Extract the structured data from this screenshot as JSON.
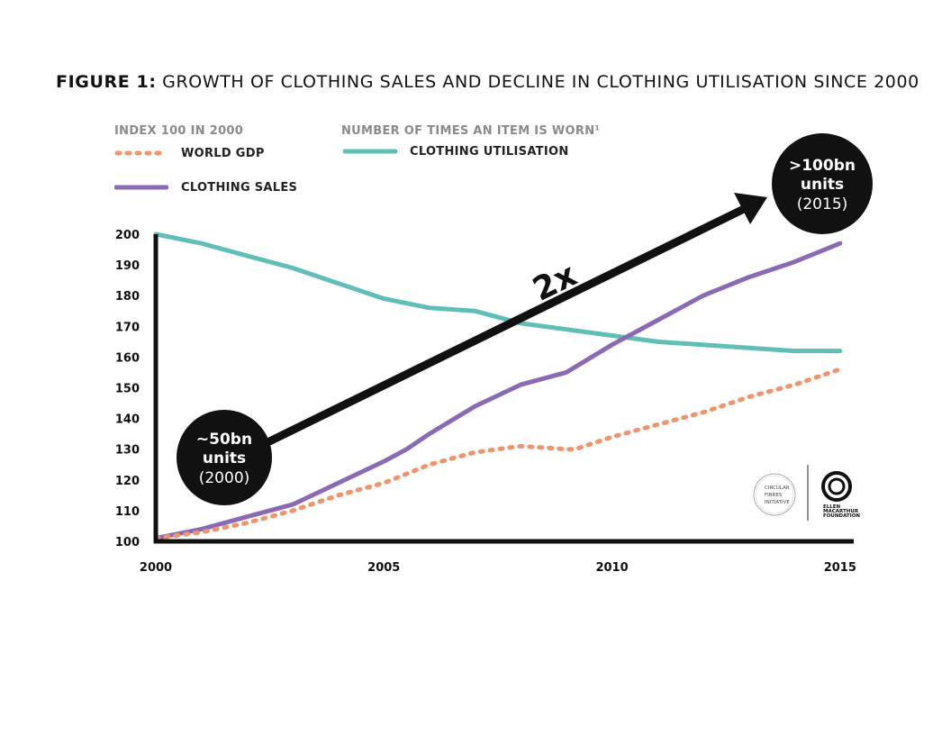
{
  "figure": {
    "label": "FIGURE 1:",
    "title": "GROWTH OF CLOTHING SALES AND DECLINE IN CLOTHING UTILISATION SINCE 2000"
  },
  "legend": {
    "left_heading": "INDEX 100 IN 2000",
    "right_heading": "NUMBER OF TIMES AN ITEM IS WORN¹",
    "items": [
      {
        "label": "WORLD GDP",
        "color": "#f0956b",
        "style": "dotted"
      },
      {
        "label": "CLOTHING SALES",
        "color": "#8a6bb3",
        "style": "solid"
      },
      {
        "label": "CLOTHING UTILISATION",
        "color": "#5fbfb6",
        "style": "solid"
      }
    ]
  },
  "annotations": {
    "start_bubble": {
      "line1": "~50bn",
      "line2": "units",
      "line3": "(2000)"
    },
    "end_bubble": {
      "line1": ">100bn",
      "line2": "units",
      "line3": "(2015)"
    },
    "multiplier": "2x"
  },
  "logos": {
    "left": [
      "CIRCULAR",
      "FIBRES",
      "INITIATIVE"
    ],
    "right": [
      "ELLEN",
      "MACARTHUR",
      "FOUNDATION"
    ]
  },
  "chart_data": {
    "type": "line",
    "xlim": [
      2000,
      2015.3
    ],
    "ylim": [
      100,
      200
    ],
    "x_ticks": [
      2000,
      2005,
      2010,
      2015
    ],
    "y_ticks": [
      100,
      110,
      120,
      130,
      140,
      150,
      160,
      170,
      180,
      190,
      200
    ],
    "grid": false,
    "legend_position": "top-left",
    "series": [
      {
        "name": "CLOTHING UTILISATION",
        "color": "#5fbfb6",
        "style": "solid",
        "x": [
          2000,
          2001,
          2002,
          2003,
          2004,
          2005,
          2006,
          2007,
          2008,
          2009,
          2010,
          2011,
          2012,
          2013,
          2014,
          2015
        ],
        "values": [
          200,
          197,
          193,
          189,
          184,
          179,
          176,
          175,
          171,
          169,
          167,
          165,
          164,
          163,
          162,
          162
        ]
      },
      {
        "name": "CLOTHING SALES",
        "color": "#8a6bb3",
        "style": "solid",
        "x": [
          2000,
          2001,
          2002,
          2003,
          2004,
          2005,
          2005.5,
          2006,
          2007,
          2008,
          2009,
          2010,
          2011,
          2012,
          2013,
          2014,
          2015
        ],
        "values": [
          101,
          104,
          108,
          112,
          119,
          126,
          130,
          135,
          144,
          151,
          155,
          164,
          172,
          180,
          186,
          191,
          197
        ]
      },
      {
        "name": "WORLD GDP",
        "color": "#f0956b",
        "style": "dotted",
        "x": [
          2000,
          2001,
          2002,
          2003,
          2004,
          2005,
          2006,
          2007,
          2008,
          2009,
          2009.2,
          2010,
          2011,
          2012,
          2013,
          2014,
          2015
        ],
        "values": [
          101,
          103,
          106,
          110,
          115,
          119,
          125,
          129,
          131,
          130,
          130,
          134,
          138,
          142,
          147,
          151,
          156
        ]
      }
    ]
  }
}
